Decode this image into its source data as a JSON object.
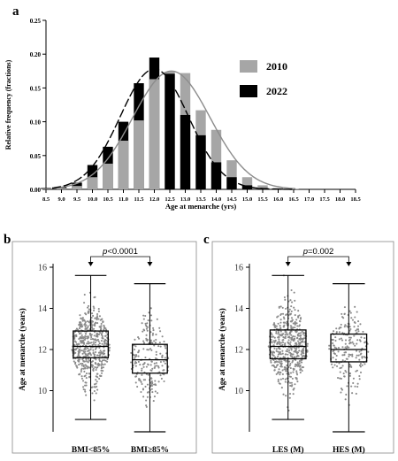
{
  "chart_data": [
    {
      "panel_label": "a",
      "type": "bar",
      "xlabel": "Age at menarche (yrs)",
      "ylabel": "Relative frequency (fractions)",
      "ylim": [
        0,
        0.25
      ],
      "yticks": [
        "0.00",
        "0.05",
        "0.10",
        "0.15",
        "0.20",
        "0.25"
      ],
      "categories": [
        "8.5",
        "9.0",
        "9.5",
        "10.0",
        "10.5",
        "11.0",
        "11.5",
        "12.0",
        "12.5",
        "13.0",
        "13.5",
        "14.0",
        "14.5",
        "15.0",
        "15.5",
        "16.0",
        "16.5",
        "17.0",
        "17.5",
        "18.0",
        "18.5"
      ],
      "legend_position": "right",
      "series": [
        {
          "name": "2010",
          "color": "#a6a6a6",
          "values": [
            0.001,
            0.002,
            0.005,
            0.018,
            0.038,
            0.072,
            0.102,
            0.163,
            0.174,
            0.172,
            0.117,
            0.088,
            0.043,
            0.018,
            0.006,
            0.002,
            0.001,
            0.0,
            0.0,
            0.0,
            0.0
          ],
          "fit_curve": "gaussian",
          "fit_mean": 12.55,
          "fit_sd": 1.25,
          "fit_peak": 0.175
        },
        {
          "name": "2022",
          "color": "#000000",
          "values": [
            0.002,
            0.004,
            0.01,
            0.036,
            0.063,
            0.1,
            0.157,
            0.195,
            0.171,
            0.11,
            0.08,
            0.04,
            0.018,
            0.006,
            0.002,
            0.001,
            0.0,
            0.0,
            0.0,
            0.0,
            0.0
          ],
          "fit_curve": "gaussian",
          "fit_mean": 12.0,
          "fit_sd": 1.1,
          "fit_peak": 0.178
        }
      ]
    },
    {
      "panel_label": "b",
      "type": "box",
      "ylabel": "Age at menarche (years)",
      "ylim": [
        8,
        16
      ],
      "yticks": [
        "10",
        "12",
        "14",
        "16"
      ],
      "categories": [
        "BMI<85%",
        "BMI≥85%"
      ],
      "boxes": [
        {
          "min": 8.6,
          "q1": 11.6,
          "median": 12.15,
          "q3": 12.9,
          "max": 15.6
        },
        {
          "min": 8.0,
          "q1": 10.85,
          "median": 11.5,
          "q3": 12.25,
          "max": 15.2
        }
      ],
      "p_label": "p",
      "p_value": "<0.0001"
    },
    {
      "panel_label": "c",
      "type": "box",
      "ylabel": "Age at menarche (years)",
      "ylim": [
        8,
        16
      ],
      "yticks": [
        "10",
        "12",
        "14",
        "16"
      ],
      "categories": [
        "LES (M)",
        "HES (M)"
      ],
      "boxes": [
        {
          "min": 8.6,
          "q1": 11.55,
          "median": 12.15,
          "q3": 12.95,
          "max": 15.6
        },
        {
          "min": 8.0,
          "q1": 11.4,
          "median": 12.0,
          "q3": 12.75,
          "max": 15.2
        }
      ],
      "p_label": "p",
      "p_value": "=0.002"
    }
  ]
}
